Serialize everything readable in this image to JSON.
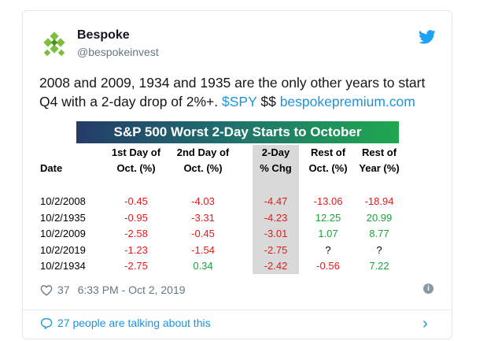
{
  "tweet": {
    "name": "Bespoke",
    "handle": "@bespokeinvest",
    "text_main": "2008 and 2009, 1934 and 1935 are the only other years to start Q4 with a 2-day drop of 2%+.",
    "text_cashtag": "$SPY",
    "text_dollars": "$$",
    "text_link": "bespokepremium.com",
    "likes": "37",
    "timestamp": "6:33 PM - Oct 2, 2019",
    "talking": "27 people are talking about this"
  },
  "table": {
    "title": "S&P 500 Worst 2-Day Starts to October",
    "headers": {
      "date": "Date",
      "day1_l1": "1st Day of",
      "day1_l2": "Oct. (%)",
      "day2_l1": "2nd Day of",
      "day2_l2": "Oct. (%)",
      "chg_l1": "2-Day",
      "chg_l2": "% Chg",
      "rest_oct_l1": "Rest of",
      "rest_oct_l2": "Oct. (%)",
      "rest_year_l1": "Rest of",
      "rest_year_l2": "Year (%)"
    },
    "rows": [
      {
        "date": "10/2/2008",
        "day1": "-0.45",
        "day2": "-4.03",
        "chg": "-4.47",
        "rest_oct": "-13.06",
        "rest_year": "-18.94"
      },
      {
        "date": "10/2/1935",
        "day1": "-0.95",
        "day2": "-3.31",
        "chg": "-4.23",
        "rest_oct": "12.25",
        "rest_year": "20.99"
      },
      {
        "date": "10/2/2009",
        "day1": "-2.58",
        "day2": "-0.45",
        "chg": "-3.01",
        "rest_oct": "1.07",
        "rest_year": "8.77"
      },
      {
        "date": "10/2/2019",
        "day1": "-1.23",
        "day2": "-1.54",
        "chg": "-2.75",
        "rest_oct": "?",
        "rest_year": "?"
      },
      {
        "date": "10/2/1934",
        "day1": "-2.75",
        "day2": "0.34",
        "chg": "-2.42",
        "rest_oct": "-0.56",
        "rest_year": "7.22"
      }
    ]
  },
  "colors": {
    "negative": "#e31b1b",
    "positive": "#1ba33b",
    "link": "#1b95e0"
  },
  "icons": {
    "avatar": "bespoke-logo-icon",
    "platform": "twitter-bird-icon",
    "like": "heart-icon",
    "info": "info-icon",
    "reply": "speech-bubble-icon",
    "chevron": "chevron-right-icon"
  }
}
